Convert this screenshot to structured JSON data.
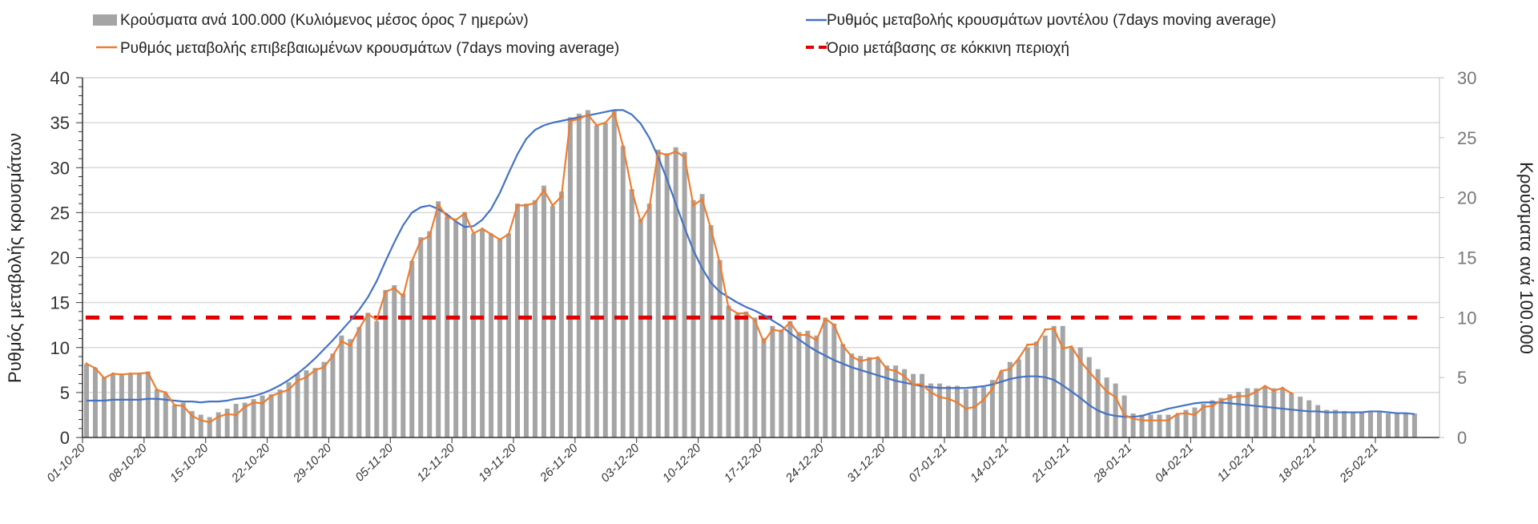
{
  "chart_data": {
    "type": "bar+line",
    "title": "",
    "legend": {
      "placement": "top",
      "entries": [
        {
          "name": "Κρούσματα ανά 100.000 (Κυλιόμενος μέσος όρος 7 ημερών)",
          "kind": "bar",
          "color": "#a5a5a5"
        },
        {
          "name": "Ρυθμός μεταβολής κρουσμάτων μοντέλου (7days moving average)",
          "kind": "line",
          "color": "#4472c4"
        },
        {
          "name": "Ρυθμός μεταβολής επιβεβαιωμένων κρουσμάτων (7days moving average)",
          "kind": "line",
          "color": "#ed7d31"
        },
        {
          "name": "Όριο μετάβασης σε κόκκινη περιοχή",
          "kind": "dashed-line",
          "color": "#e00000"
        }
      ]
    },
    "y_left": {
      "label": "Ρυθμός μεταβολής κρουσμάτων",
      "range": [
        0,
        40
      ],
      "ticks": [
        0,
        5,
        10,
        15,
        20,
        25,
        30,
        35,
        40
      ]
    },
    "y_right": {
      "label": "Κρούσματα ανά 100.000",
      "range": [
        0,
        30
      ],
      "ticks": [
        0,
        5,
        10,
        15,
        20,
        25,
        30
      ]
    },
    "x_tick_labels": [
      "01-10-20",
      "08-10-20",
      "15-10-20",
      "22-10-20",
      "29-10-20",
      "05-11-20",
      "12-11-20",
      "19-11-20",
      "26-11-20",
      "03-12-20",
      "10-12-20",
      "17-12-20",
      "24-12-20",
      "31-12-20",
      "07-01-21",
      "14-01-21",
      "21-01-21",
      "28-01-21",
      "04-02-21",
      "11-02-21",
      "18-02-21",
      "25-02-21"
    ],
    "start_date": "01-10-20",
    "days": 150,
    "grid": true,
    "threshold": {
      "axis": "right",
      "value": 10
    },
    "bars_per100k": [
      6.1,
      5.8,
      5.0,
      5.3,
      5.2,
      5.3,
      5.3,
      5.5,
      4.0,
      3.7,
      2.7,
      2.9,
      2.2,
      1.9,
      1.7,
      2.1,
      2.4,
      2.8,
      2.9,
      3.2,
      3.5,
      3.6,
      4.0,
      4.6,
      5.3,
      5.6,
      5.8,
      6.3,
      7.0,
      8.5,
      8.2,
      9.2,
      10.4,
      9.7,
      12.3,
      12.7,
      12.0,
      14.7,
      16.7,
      17.2,
      19.7,
      18.4,
      18.0,
      18.8,
      17.0,
      17.4,
      17.0,
      16.5,
      17.0,
      19.5,
      19.5,
      19.8,
      21.0,
      19.3,
      20.5,
      26.7,
      27.0,
      27.3,
      26.0,
      26.2,
      27.3,
      24.3,
      20.7,
      18.2,
      19.5,
      24.0,
      23.7,
      24.2,
      23.8,
      19.8,
      20.3,
      17.7,
      14.8,
      11.0,
      10.3,
      10.5,
      10.0,
      8.3,
      9.3,
      9.0,
      9.7,
      8.8,
      8.9,
      8.5,
      10.0,
      9.5,
      7.8,
      7.0,
      6.8,
      6.7,
      6.6,
      6.0,
      6.0,
      5.7,
      5.3,
      5.3,
      4.5,
      4.5,
      4.3,
      4.3,
      4.0,
      4.2,
      4.2,
      4.8,
      5.5,
      6.3,
      6.5,
      7.5,
      8.0,
      8.5,
      9.3,
      9.3,
      7.5,
      7.5,
      6.7,
      5.7,
      5.0,
      4.5,
      3.5,
      2.0,
      1.9,
      1.9,
      1.9,
      1.9,
      1.9,
      2.3,
      2.5,
      2.8,
      3.1,
      3.3,
      3.6,
      3.8,
      4.1,
      4.1,
      4.3,
      4.1,
      4.1,
      3.7,
      3.4,
      3.1,
      2.7,
      2.3,
      2.3,
      2.2,
      2.1,
      2.1,
      2.1,
      2.1,
      2.0,
      2.0,
      2.0,
      2.0
    ],
    "series_model_rate": [
      4.1,
      4.1,
      4.1,
      4.2,
      4.2,
      4.2,
      4.2,
      4.3,
      4.3,
      4.2,
      4.1,
      4.0,
      4.0,
      3.9,
      4.0,
      4.0,
      4.1,
      4.3,
      4.4,
      4.6,
      4.9,
      5.3,
      5.8,
      6.4,
      7.1,
      7.9,
      8.8,
      9.8,
      10.8,
      11.9,
      13.0,
      14.2,
      15.6,
      17.4,
      19.6,
      21.7,
      23.6,
      25.0,
      25.6,
      25.8,
      25.4,
      24.8,
      24.0,
      23.4,
      23.5,
      24.2,
      25.4,
      27.2,
      29.4,
      31.5,
      33.2,
      34.2,
      34.7,
      35.0,
      35.2,
      35.4,
      35.6,
      35.8,
      36.0,
      36.2,
      36.4,
      36.4,
      35.9,
      34.9,
      33.3,
      31.2,
      28.7,
      26.0,
      23.3,
      20.8,
      18.8,
      17.2,
      16.2,
      15.6,
      15.0,
      14.5,
      14.1,
      13.6,
      13.0,
      12.4,
      11.6,
      10.9,
      10.2,
      9.6,
      9.1,
      8.6,
      8.2,
      7.8,
      7.5,
      7.2,
      6.9,
      6.6,
      6.3,
      6.1,
      5.9,
      5.7,
      5.6,
      5.5,
      5.5,
      5.5,
      5.5,
      5.6,
      5.7,
      5.9,
      6.2,
      6.5,
      6.7,
      6.8,
      6.8,
      6.7,
      6.4,
      5.8,
      5.1,
      4.4,
      3.6,
      3.0,
      2.6,
      2.4,
      2.3,
      2.3,
      2.4,
      2.7,
      2.9,
      3.2,
      3.4,
      3.6,
      3.8,
      3.9,
      3.9,
      3.9,
      3.8,
      3.7,
      3.6,
      3.5,
      3.4,
      3.3,
      3.2,
      3.1,
      3.0,
      2.9,
      2.9,
      2.8,
      2.8,
      2.8,
      2.8,
      2.8,
      2.9,
      2.9,
      2.8,
      2.7,
      2.7,
      2.6
    ],
    "series_confirmed_rate": [
      8.2,
      7.7,
      6.6,
      7.1,
      7.0,
      7.1,
      7.1,
      7.2,
      5.3,
      5.0,
      3.6,
      3.5,
      2.4,
      1.9,
      1.7,
      2.3,
      2.6,
      2.5,
      3.4,
      3.9,
      3.8,
      4.6,
      5.0,
      5.3,
      6.3,
      6.7,
      7.5,
      7.8,
      9.1,
      10.7,
      10.2,
      12.1,
      13.7,
      13.1,
      16.2,
      16.6,
      15.7,
      19.6,
      21.9,
      22.4,
      25.9,
      24.5,
      24.2,
      24.9,
      22.7,
      23.2,
      22.6,
      22.0,
      22.6,
      25.8,
      25.8,
      26.1,
      27.5,
      25.8,
      26.8,
      35.2,
      35.4,
      35.9,
      34.7,
      35.0,
      36.1,
      32.4,
      27.5,
      24.0,
      25.6,
      31.7,
      31.4,
      31.8,
      31.2,
      25.8,
      26.5,
      23.2,
      19.4,
      14.4,
      13.8,
      13.8,
      13.0,
      10.6,
      12.0,
      11.8,
      12.8,
      11.4,
      11.4,
      10.8,
      13.2,
      12.5,
      10.2,
      9.0,
      8.5,
      8.7,
      8.9,
      7.6,
      7.4,
      6.8,
      5.9,
      5.9,
      5.0,
      4.5,
      4.3,
      3.9,
      3.2,
      3.4,
      4.2,
      5.4,
      7.4,
      7.6,
      8.8,
      10.3,
      10.4,
      12.0,
      12.1,
      9.9,
      10.1,
      8.5,
      7.3,
      6.2,
      5.1,
      4.5,
      2.5,
      2.1,
      1.9,
      1.9,
      1.9,
      1.9,
      2.6,
      2.7,
      2.5,
      3.4,
      3.5,
      4.1,
      4.4,
      4.6,
      4.6,
      5.1,
      5.7,
      5.2,
      5.5,
      4.9,
      null,
      null,
      null,
      null,
      null,
      null,
      null,
      null,
      null,
      null,
      null,
      null,
      null,
      null,
      null,
      null,
      null,
      null,
      null,
      null,
      null
    ]
  }
}
